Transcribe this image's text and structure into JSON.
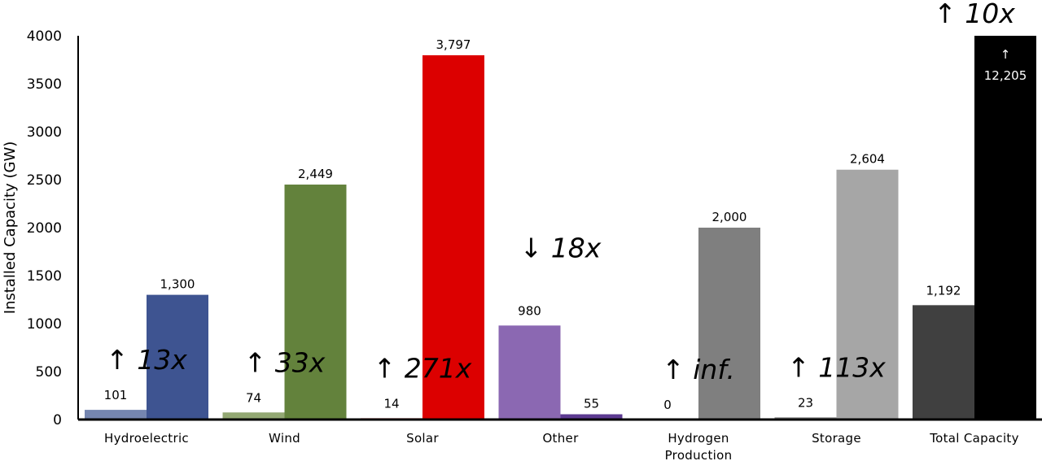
{
  "chart_data": {
    "type": "bar",
    "ylabel": "Installed Capacity (GW)",
    "ylim": [
      0,
      4000
    ],
    "yticks": [
      "0",
      "500",
      "1000",
      "1500",
      "2000",
      "2500",
      "3000",
      "3500",
      "4000"
    ],
    "grid": false,
    "categories": [
      {
        "label": [
          "Hydroelectric"
        ],
        "before": 101,
        "after": 1300,
        "before_label": "101",
        "after_label": "1,300",
        "before_color": "#7586B0",
        "after_color": "#3E5491",
        "change": "↑ 13x"
      },
      {
        "label": [
          "Wind"
        ],
        "before": 74,
        "after": 2449,
        "before_label": "74",
        "after_label": "2,449",
        "before_color": "#93A873",
        "after_color": "#63823C",
        "change": "↑ 33x"
      },
      {
        "label": [
          "Solar"
        ],
        "before": 14,
        "after": 3797,
        "before_label": "14",
        "after_label": "3,797",
        "before_color": "#E86A6A",
        "after_color": "#DC0000",
        "change": "↑ 271x"
      },
      {
        "label": [
          "Other"
        ],
        "before": 980,
        "after": 55,
        "before_label": "980",
        "after_label": "55",
        "before_color": "#8B68B2",
        "after_color": "#5C3A91",
        "change": "↓ 18x"
      },
      {
        "label": [
          "Hydrogen",
          "Production"
        ],
        "before": 0,
        "after": 2000,
        "before_label": "0",
        "after_label": "2,000",
        "before_color": "#BFBFBF",
        "after_color": "#7F7F7F",
        "change": "↑ inf."
      },
      {
        "label": [
          "Storage"
        ],
        "before": 23,
        "after": 2604,
        "before_label": "23",
        "after_label": "2,604",
        "before_color": "#8C8C8C",
        "after_color": "#A6A6A6",
        "change": "↑ 113x"
      },
      {
        "label": [
          "Total Capacity"
        ],
        "before": 1192,
        "after": 12205,
        "before_label": "1,192",
        "after_label": "12,205",
        "before_color": "#404040",
        "after_color": "#000000",
        "change": "↑ 10x",
        "after_truncated": true
      }
    ]
  }
}
